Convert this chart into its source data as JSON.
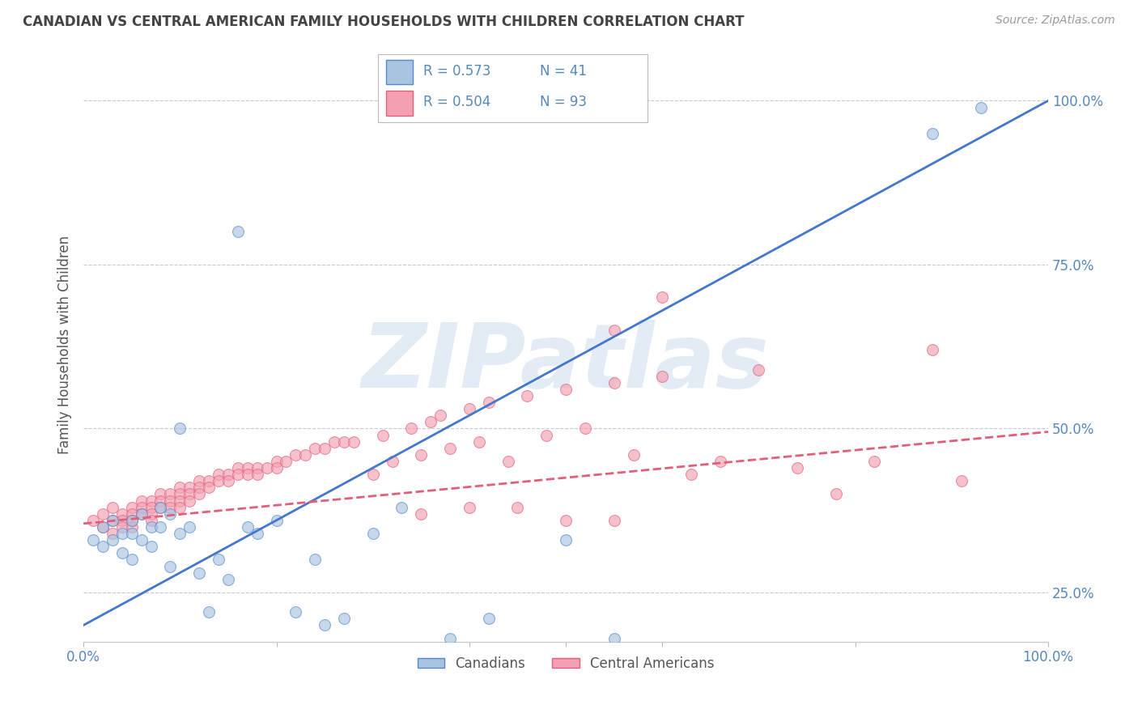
{
  "title": "CANADIAN VS CENTRAL AMERICAN FAMILY HOUSEHOLDS WITH CHILDREN CORRELATION CHART",
  "source": "Source: ZipAtlas.com",
  "ylabel": "Family Households with Children",
  "xlim": [
    0,
    1.0
  ],
  "ylim": [
    0.175,
    1.08
  ],
  "yticks": [
    0.25,
    0.5,
    0.75,
    1.0
  ],
  "ytick_labels": [
    "25.0%",
    "50.0%",
    "75.0%",
    "100.0%"
  ],
  "xticks": [
    0.0,
    0.2,
    0.4,
    0.5,
    0.6,
    0.8,
    1.0
  ],
  "xtick_labels": [
    "0.0%",
    "",
    "",
    "",
    "",
    "",
    "100.0%"
  ],
  "blue_R": 0.573,
  "blue_N": 41,
  "pink_R": 0.504,
  "pink_N": 93,
  "blue_fill_color": "#A8C4E0",
  "pink_fill_color": "#F4A0B0",
  "blue_edge_color": "#5588CC",
  "pink_edge_color": "#E06080",
  "blue_line_color": "#4477CC",
  "pink_line_color": "#E0607A",
  "background_color": "#FFFFFF",
  "grid_color": "#C8C8D8",
  "title_color": "#444444",
  "axis_label_color": "#555555",
  "tick_color": "#5588BB",
  "blue_line_x0": 0.0,
  "blue_line_x1": 1.0,
  "blue_line_y0": 0.2,
  "blue_line_y1": 1.0,
  "pink_line_x0": 0.0,
  "pink_line_x1": 1.0,
  "pink_line_y0": 0.355,
  "pink_line_y1": 0.495,
  "watermark_text": "ZIPatlas",
  "watermark_color": "#C8D8EC",
  "legend_label_blue": "Canadians",
  "legend_label_pink": "Central Americans",
  "blue_scatter_x": [
    0.01,
    0.02,
    0.02,
    0.03,
    0.03,
    0.04,
    0.04,
    0.05,
    0.05,
    0.05,
    0.06,
    0.06,
    0.07,
    0.07,
    0.08,
    0.08,
    0.09,
    0.09,
    0.1,
    0.1,
    0.11,
    0.12,
    0.13,
    0.14,
    0.15,
    0.16,
    0.17,
    0.18,
    0.2,
    0.22,
    0.24,
    0.25,
    0.27,
    0.3,
    0.33,
    0.38,
    0.42,
    0.5,
    0.55,
    0.88,
    0.93
  ],
  "blue_scatter_y": [
    0.33,
    0.35,
    0.32,
    0.36,
    0.33,
    0.34,
    0.31,
    0.36,
    0.34,
    0.3,
    0.37,
    0.33,
    0.35,
    0.32,
    0.35,
    0.38,
    0.29,
    0.37,
    0.34,
    0.5,
    0.35,
    0.28,
    0.22,
    0.3,
    0.27,
    0.8,
    0.35,
    0.34,
    0.36,
    0.22,
    0.3,
    0.2,
    0.21,
    0.34,
    0.38,
    0.18,
    0.21,
    0.33,
    0.18,
    0.95,
    0.99
  ],
  "pink_scatter_x": [
    0.01,
    0.02,
    0.02,
    0.03,
    0.03,
    0.03,
    0.04,
    0.04,
    0.04,
    0.05,
    0.05,
    0.05,
    0.05,
    0.06,
    0.06,
    0.06,
    0.07,
    0.07,
    0.07,
    0.07,
    0.08,
    0.08,
    0.08,
    0.09,
    0.09,
    0.09,
    0.1,
    0.1,
    0.1,
    0.1,
    0.11,
    0.11,
    0.11,
    0.12,
    0.12,
    0.12,
    0.13,
    0.13,
    0.14,
    0.14,
    0.15,
    0.15,
    0.16,
    0.16,
    0.17,
    0.17,
    0.18,
    0.18,
    0.19,
    0.2,
    0.2,
    0.21,
    0.22,
    0.23,
    0.24,
    0.25,
    0.26,
    0.27,
    0.28,
    0.3,
    0.31,
    0.32,
    0.34,
    0.35,
    0.36,
    0.37,
    0.38,
    0.4,
    0.41,
    0.42,
    0.44,
    0.46,
    0.48,
    0.5,
    0.52,
    0.55,
    0.57,
    0.6,
    0.63,
    0.66,
    0.7,
    0.74,
    0.78,
    0.82,
    0.88,
    0.91,
    0.55,
    0.6,
    0.35,
    0.4,
    0.45,
    0.5,
    0.55
  ],
  "pink_scatter_y": [
    0.36,
    0.37,
    0.35,
    0.38,
    0.36,
    0.34,
    0.37,
    0.36,
    0.35,
    0.38,
    0.37,
    0.36,
    0.35,
    0.39,
    0.38,
    0.37,
    0.39,
    0.38,
    0.37,
    0.36,
    0.4,
    0.39,
    0.38,
    0.4,
    0.39,
    0.38,
    0.41,
    0.4,
    0.39,
    0.38,
    0.41,
    0.4,
    0.39,
    0.42,
    0.41,
    0.4,
    0.42,
    0.41,
    0.43,
    0.42,
    0.43,
    0.42,
    0.44,
    0.43,
    0.44,
    0.43,
    0.44,
    0.43,
    0.44,
    0.45,
    0.44,
    0.45,
    0.46,
    0.46,
    0.47,
    0.47,
    0.48,
    0.48,
    0.48,
    0.43,
    0.49,
    0.45,
    0.5,
    0.46,
    0.51,
    0.52,
    0.47,
    0.53,
    0.48,
    0.54,
    0.45,
    0.55,
    0.49,
    0.56,
    0.5,
    0.57,
    0.46,
    0.58,
    0.43,
    0.45,
    0.59,
    0.44,
    0.4,
    0.45,
    0.62,
    0.42,
    0.65,
    0.7,
    0.37,
    0.38,
    0.38,
    0.36,
    0.36
  ]
}
